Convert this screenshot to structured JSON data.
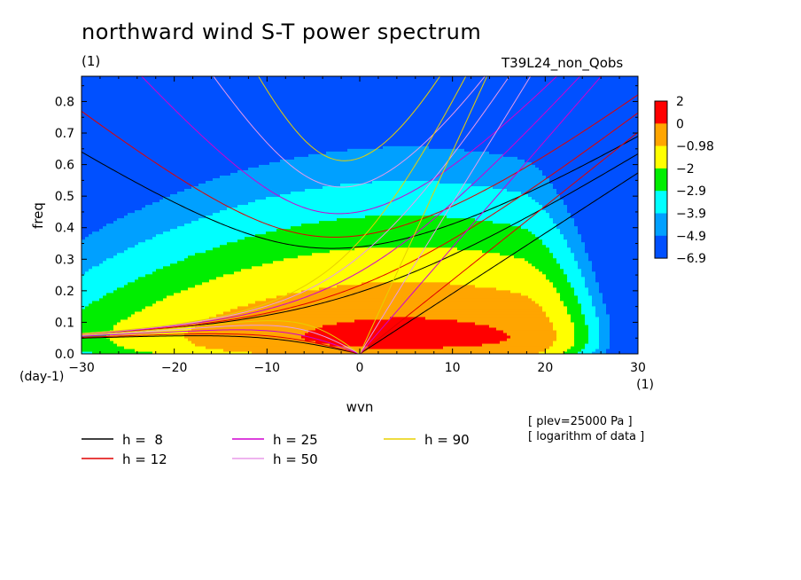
{
  "chart_data": {
    "type": "heatmap",
    "title": "northward wind S-T power spectrum",
    "subtitle_left": "(1)",
    "subtitle_right": "T39L24_non_Qobs",
    "xlabel": "wvn",
    "ylabel": "freq",
    "x_unit": "(1)",
    "y_unit": "(day-1)",
    "xlim": [
      -30,
      30
    ],
    "ylim": [
      0,
      0.88
    ],
    "xticks": [
      -30,
      -20,
      -10,
      0,
      10,
      20,
      30
    ],
    "yticks": [
      0,
      0.1,
      0.2,
      0.3,
      0.4,
      0.5,
      0.6,
      0.7,
      0.8
    ],
    "colorbar": {
      "labels": [
        "2",
        "0",
        "-0.98",
        "-2",
        "-2.9",
        "-3.9",
        "-4.9",
        "-6.9"
      ],
      "colors": [
        "#ff0000",
        "#ffa500",
        "#ffff00",
        "#00ee00",
        "#00ffff",
        "#00a0ff",
        "#0050ff"
      ]
    },
    "notes": [
      "[ plev=25000 Pa ]",
      "[ logarithm of data ]"
    ],
    "dispersion_curves": [
      {
        "h": 8,
        "label": "h =  8",
        "color": "#000000"
      },
      {
        "h": 12,
        "label": "h = 12",
        "color": "#e00000"
      },
      {
        "h": 25,
        "label": "h = 25",
        "color": "#d000d0"
      },
      {
        "h": 50,
        "label": "h = 50",
        "color": "#e89be8"
      },
      {
        "h": 90,
        "label": "h = 90",
        "color": "#e8d000"
      }
    ]
  }
}
